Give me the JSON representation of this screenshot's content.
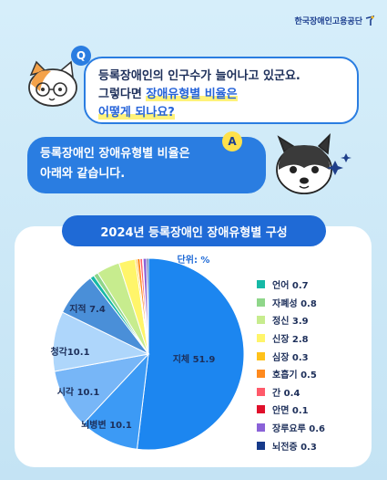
{
  "logo": {
    "text": "한국장애인고용공단"
  },
  "question": {
    "badge": "Q",
    "line1": "등록장애인의 인구수가 늘어나고 있군요.",
    "line2_pre": "그렇다면 ",
    "line2_hl": "장애유형별 비율은",
    "line3": "어떻게 되나요?"
  },
  "answer": {
    "badge": "A",
    "line1": "등록장애인 장애유형별 비율은",
    "line2": "아래와 같습니다."
  },
  "chart_data": {
    "type": "pie",
    "title": "2024년 등록장애인 장애유형별 구성",
    "unit": "단위: %",
    "slices": [
      {
        "name": "지체",
        "value": 51.9,
        "label": "지체 51.9",
        "color": "#1c86f0"
      },
      {
        "name": "뇌병변",
        "value": 10.1,
        "label": "뇌병변 10.1",
        "color": "#3c9af5"
      },
      {
        "name": "시각",
        "value": 10.1,
        "label": "시각 10.1",
        "color": "#77b6f7"
      },
      {
        "name": "청각",
        "value": 10.1,
        "label": "청각10.1",
        "color": "#aed6fb"
      },
      {
        "name": "지적",
        "value": 7.4,
        "label": "지적 7.4",
        "color": "#4a8fd8"
      },
      {
        "name": "언어",
        "value": 0.7,
        "label": "언어 0.7",
        "color": "#16b9a6"
      },
      {
        "name": "자폐성",
        "value": 0.8,
        "label": "자폐성 0.8",
        "color": "#8fd68a"
      },
      {
        "name": "정신",
        "value": 3.9,
        "label": "정신 3.9",
        "color": "#c7ec8e"
      },
      {
        "name": "신장",
        "value": 2.8,
        "label": "신장 2.8",
        "color": "#fff56a"
      },
      {
        "name": "심장",
        "value": 0.3,
        "label": "심장 0.3",
        "color": "#ffc21a"
      },
      {
        "name": "호흡기",
        "value": 0.5,
        "label": "호흡기 0.5",
        "color": "#ff8a1e"
      },
      {
        "name": "간",
        "value": 0.4,
        "label": "간 0.4",
        "color": "#ff5a6a"
      },
      {
        "name": "안면",
        "value": 0.1,
        "label": "안면 0.1",
        "color": "#e0102b"
      },
      {
        "name": "장루요루",
        "value": 0.6,
        "label": "장루요루 0.6",
        "color": "#8a62d8"
      },
      {
        "name": "뇌전증",
        "value": 0.3,
        "label": "뇌전증 0.3",
        "color": "#163a8a"
      }
    ],
    "on_chart_labels": [
      "지체",
      "뇌병변",
      "시각",
      "청각",
      "지적"
    ],
    "legend_order": [
      "언어",
      "자폐성",
      "정신",
      "신장",
      "심장",
      "호흡기",
      "간",
      "안면",
      "장루요루",
      "뇌전증"
    ],
    "legend_placement": "right"
  }
}
